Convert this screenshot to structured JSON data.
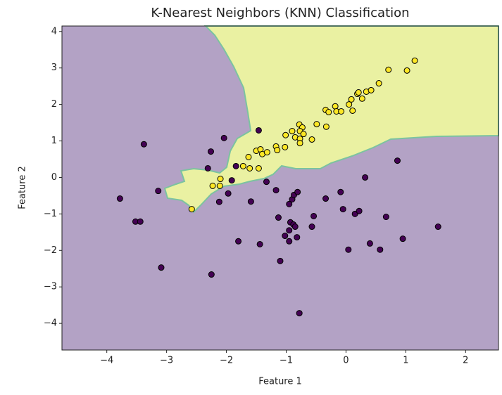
{
  "chart_data": {
    "type": "scatter",
    "title": "K-Nearest Neighbors (KNN) Classification",
    "x_label": "Feature 1",
    "y_label": "Feature 2",
    "xlim": [
      -4.75,
      2.55
    ],
    "ylim": [
      -4.73,
      4.15
    ],
    "xticks": [
      {
        "value": -4,
        "label": "−4"
      },
      {
        "value": -3,
        "label": "−3"
      },
      {
        "value": -2,
        "label": "−2"
      },
      {
        "value": -1,
        "label": "−1"
      },
      0,
      1,
      2
    ],
    "yticks": [
      {
        "value": -4,
        "label": "−4"
      },
      {
        "value": -3,
        "label": "−3"
      },
      {
        "value": -2,
        "label": "−2"
      },
      {
        "value": -1,
        "label": "−1"
      },
      0,
      1,
      2,
      3,
      4
    ],
    "series": [
      {
        "color": "#440154",
        "x": [
          -3.78,
          -3.38,
          -3.52,
          -3.44,
          -3.14,
          -3.09,
          -2.26,
          -2.31,
          -2.04,
          -2.12,
          -1.97,
          -1.91,
          -1.84,
          -2.25,
          -1.8,
          -1.59,
          -1.46,
          -1.44,
          -1.33,
          -1.17,
          -1.13,
          -1.1,
          -0.95,
          -0.9,
          -0.87,
          -0.81,
          -0.93,
          -0.88,
          -0.85,
          -0.95,
          -1.02,
          -0.95,
          -0.82,
          -0.78,
          -0.57,
          -0.54,
          -0.34,
          -0.09,
          -0.05,
          0.04,
          0.15,
          0.22,
          0.32,
          0.4,
          0.57,
          0.67,
          0.86,
          0.95,
          1.54
        ],
        "values": [
          -0.58,
          0.91,
          -1.21,
          -1.21,
          -0.37,
          -2.47,
          0.71,
          0.25,
          1.08,
          -0.67,
          -0.44,
          -0.08,
          0.31,
          -2.66,
          -1.75,
          -0.66,
          1.29,
          -1.83,
          -0.12,
          -0.35,
          -1.1,
          -2.29,
          -0.73,
          -0.6,
          -0.48,
          -0.4,
          -1.23,
          -1.29,
          -1.35,
          -1.45,
          -1.6,
          -1.75,
          -1.64,
          -3.72,
          -1.35,
          -1.06,
          -0.58,
          -0.4,
          -0.87,
          -1.98,
          -1.0,
          -0.92,
          0.0,
          -1.81,
          -1.98,
          -1.08,
          0.46,
          -1.68,
          -1.35
        ]
      },
      {
        "color": "#fde725",
        "x": [
          -2.58,
          -2.23,
          -2.11,
          -2.1,
          -1.72,
          -1.61,
          -1.63,
          -1.46,
          -1.5,
          -1.43,
          -1.4,
          -1.32,
          -1.17,
          -1.15,
          -1.02,
          -1.01,
          -0.9,
          -0.85,
          -0.78,
          -0.73,
          -0.77,
          -0.71,
          -0.77,
          -0.77,
          -0.57,
          -0.49,
          -0.34,
          -0.29,
          -0.33,
          -0.18,
          -0.16,
          -0.08,
          0.05,
          0.09,
          0.11,
          0.19,
          0.21,
          0.27,
          0.34,
          0.42,
          0.55,
          0.71,
          1.02,
          1.15
        ],
        "values": [
          -0.87,
          -0.23,
          -0.23,
          -0.04,
          0.31,
          0.25,
          0.56,
          0.25,
          0.73,
          0.77,
          0.64,
          0.69,
          0.85,
          0.75,
          0.83,
          1.16,
          1.27,
          1.1,
          1.45,
          1.37,
          1.27,
          1.19,
          1.06,
          0.94,
          1.04,
          1.46,
          1.85,
          1.79,
          1.39,
          1.95,
          1.81,
          1.81,
          2.0,
          2.14,
          1.83,
          2.29,
          2.33,
          2.16,
          2.35,
          2.39,
          2.58,
          2.95,
          2.93,
          3.2
        ]
      }
    ]
  }
}
